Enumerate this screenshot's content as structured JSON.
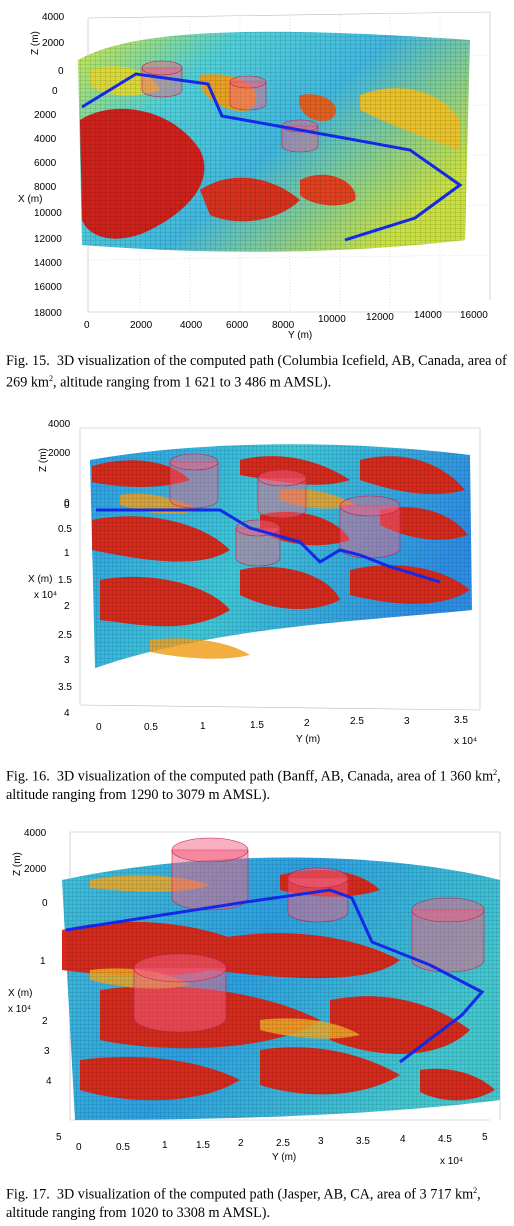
{
  "figures": [
    {
      "id": "fig15",
      "z_label": "Z (m)",
      "z_ticks": [
        "4000",
        "2000",
        "0"
      ],
      "x_label": "X (m)",
      "x_ticks": [
        "0",
        "2000",
        "4000",
        "6000",
        "8000",
        "10000",
        "12000",
        "14000",
        "16000",
        "18000"
      ],
      "x_multiplier": "",
      "y_label": "Y (m)",
      "y_ticks": [
        "0",
        "2000",
        "4000",
        "6000",
        "8000",
        "10000",
        "12000",
        "14000",
        "16000"
      ],
      "y_multiplier": "",
      "caption_prefix": "Fig. 15.",
      "caption_text": "3D visualization of the computed path (Columbia Icefield, AB, Canada, area of 269 km",
      "caption_sup": "2",
      "caption_suffix": ", altitude ranging from 1 621 to 3 486 m AMSL)."
    },
    {
      "id": "fig16",
      "z_label": "Z (m)",
      "z_ticks": [
        "4000",
        "2000",
        "0"
      ],
      "x_label": "X (m)",
      "x_ticks": [
        "0",
        "0.5",
        "1",
        "1.5",
        "2",
        "2.5",
        "3",
        "3.5",
        "4"
      ],
      "x_multiplier": "x 10⁴",
      "y_label": "Y (m)",
      "y_ticks": [
        "0",
        "0.5",
        "1",
        "1.5",
        "2",
        "2.5",
        "3",
        "3.5"
      ],
      "y_multiplier": "x 10⁴",
      "caption_prefix": "Fig. 16.",
      "caption_text": "3D visualization of the computed path (Banff, AB, Canada, area of 1 360 km",
      "caption_sup": "2",
      "caption_suffix": ", altitude ranging from 1290 to 3079 m AMSL)."
    },
    {
      "id": "fig17",
      "z_label": "Z (m)",
      "z_ticks": [
        "4000",
        "2000",
        "0"
      ],
      "x_label": "X (m)",
      "x_ticks": [
        "1",
        "2",
        "3",
        "4",
        "5"
      ],
      "x_multiplier": "x 10⁴",
      "y_label": "Y (m)",
      "y_ticks": [
        "0",
        "0.5",
        "1",
        "1.5",
        "2",
        "2.5",
        "3",
        "3.5",
        "4",
        "4.5",
        "5"
      ],
      "y_multiplier": "x 10⁴",
      "caption_prefix": "Fig. 17.",
      "caption_text": "3D visualization of the computed path (Jasper, AB, CA, area of 3 717 km",
      "caption_sup": "2",
      "caption_suffix": ", altitude ranging from 1020 to 3308 m AMSL)."
    }
  ]
}
